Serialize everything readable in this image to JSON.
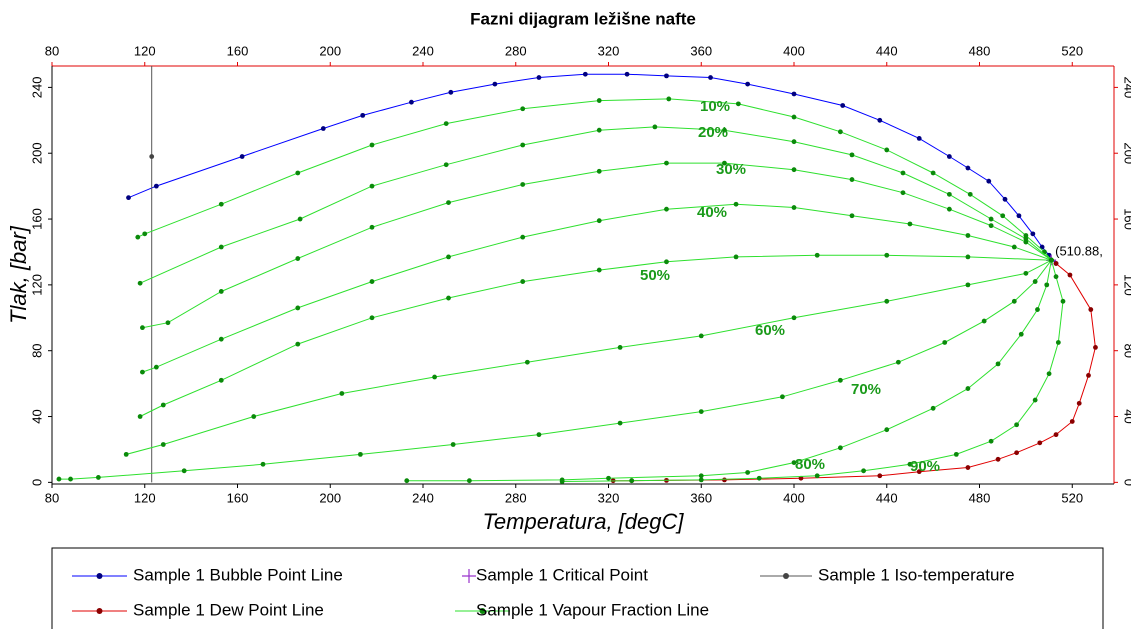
{
  "chart_data": {
    "type": "line",
    "title": "Fazni dijagram ležišne nafte",
    "x_label": "Temperatura, [degC]",
    "y_label": "Tlak, [bar]",
    "xlim": [
      80,
      538
    ],
    "ylim": [
      -1,
      253
    ],
    "xticks": [
      80,
      120,
      160,
      200,
      240,
      280,
      320,
      360,
      400,
      440,
      480,
      520
    ],
    "yticks": [
      0,
      40,
      80,
      120,
      160,
      200,
      240
    ],
    "critical_label": "(510.88,",
    "series": [
      {
        "name": "Sample 1 Bubble Point Line",
        "color": "#0000ff",
        "marker_color": "#000080",
        "x": [
          113,
          125,
          162,
          197,
          214,
          235,
          252,
          271,
          290,
          310,
          328,
          345,
          364,
          380,
          400,
          421,
          437,
          454,
          467,
          475,
          484,
          491,
          497,
          503,
          507,
          510,
          513
        ],
        "values": [
          173,
          180,
          198,
          215,
          223,
          231,
          237,
          242,
          246,
          248,
          248,
          247,
          246,
          242,
          236,
          229,
          220,
          209,
          198,
          191,
          183,
          172,
          162,
          151,
          143,
          138,
          133
        ]
      },
      {
        "name": "Sample 1 Dew Point Line",
        "color": "#e00000",
        "marker_color": "#8b0000",
        "x": [
          322,
          330,
          345,
          370,
          403,
          437,
          454,
          475,
          488,
          496,
          506,
          513,
          520,
          523,
          527,
          530,
          528,
          519,
          513
        ],
        "values": [
          1,
          1,
          1.2,
          1.5,
          2.5,
          4,
          6.5,
          9,
          14,
          18,
          24,
          29,
          37,
          48,
          65,
          82,
          105,
          126,
          133
        ]
      },
      {
        "name": "Sample 1 Critical Point",
        "color": "#9933cc",
        "x": [
          510.88
        ],
        "values": [
          135
        ]
      },
      {
        "name": "Sample 1 Iso-temperature",
        "color": "#555555",
        "marker_color": "#444444",
        "x": [
          123,
          123,
          123
        ],
        "values": [
          0,
          198,
          253
        ]
      },
      {
        "name": "Sample 1 Vapour Fraction Line",
        "color": "#2ee02e",
        "marker_color": "#0a8a0a",
        "lines": [
          {
            "label": "10%",
            "x": [
              117,
              120,
              153,
              186,
              218,
              250,
              283,
              316,
              346,
              376,
              400,
              420,
              440,
              460,
              476,
              490,
              500,
              508,
              511
            ],
            "values": [
              149,
              151,
              169,
              188,
              205,
              218,
              227,
              232,
              233,
              230,
              222,
              213,
              202,
              188,
              175,
              162,
              150,
              140,
              135
            ]
          },
          {
            "label": "20%",
            "x": [
              118,
              153,
              187,
              218,
              250,
              283,
              316,
              340,
              370,
              400,
              425,
              447,
              467,
              485,
              500,
              511
            ],
            "values": [
              121,
              143,
              160,
              180,
              193,
              205,
              214,
              216,
              214,
              207,
              199,
              188,
              175,
              160,
              148,
              135
            ]
          },
          {
            "label": "30%",
            "x": [
              119,
              130,
              153,
              186,
              218,
              251,
              283,
              316,
              345,
              370,
              400,
              425,
              447,
              467,
              485,
              500,
              511
            ],
            "values": [
              94,
              97,
              116,
              136,
              155,
              170,
              181,
              189,
              194,
              194,
              190,
              184,
              176,
              166,
              156,
              146,
              135
            ]
          },
          {
            "label": "40%",
            "x": [
              119,
              125,
              153,
              186,
              218,
              251,
              283,
              316,
              345,
              375,
              400,
              425,
              450,
              475,
              495,
              511
            ],
            "values": [
              67,
              70,
              87,
              106,
              122,
              137,
              149,
              159,
              166,
              169,
              167,
              162,
              157,
              150,
              143,
              135
            ]
          },
          {
            "label": "50%",
            "x": [
              118,
              128,
              153,
              186,
              218,
              251,
              283,
              316,
              345,
              375,
              410,
              440,
              475,
              511
            ],
            "values": [
              40,
              47,
              62,
              84,
              100,
              112,
              122,
              129,
              134,
              137,
              138,
              138,
              137,
              135
            ]
          },
          {
            "label": "60%",
            "x": [
              112,
              128,
              167,
              205,
              245,
              285,
              325,
              360,
              400,
              440,
              475,
              500,
              511
            ],
            "values": [
              17,
              23,
              40,
              54,
              64,
              73,
              82,
              89,
              100,
              110,
              120,
              127,
              135
            ]
          },
          {
            "label": "70%",
            "x": [
              83,
              88,
              100,
              137,
              171,
              213,
              253,
              290,
              325,
              360,
              395,
              420,
              445,
              465,
              482,
              495,
              504,
              511
            ],
            "values": [
              2,
              2,
              3,
              7,
              11,
              17,
              23,
              29,
              36,
              43,
              52,
              62,
              73,
              85,
              98,
              110,
              122,
              135
            ]
          },
          {
            "label": "80%",
            "x": [
              233,
              260,
              300,
              320,
              360,
              380,
              400,
              420,
              440,
              460,
              475,
              488,
              498,
              505,
              509,
              511
            ],
            "values": [
              1,
              1,
              1.5,
              2.5,
              4,
              6,
              12,
              21,
              32,
              45,
              57,
              72,
              90,
              105,
              120,
              135
            ]
          },
          {
            "label": "90%",
            "x": [
              300,
              330,
              360,
              385,
              410,
              430,
              450,
              470,
              485,
              496,
              504,
              510,
              514,
              516,
              513,
              511
            ],
            "values": [
              0.5,
              1,
              1.5,
              2.5,
              4,
              7,
              11,
              17,
              25,
              35,
              50,
              66,
              85,
              110,
              125,
              135
            ]
          }
        ]
      }
    ]
  }
}
